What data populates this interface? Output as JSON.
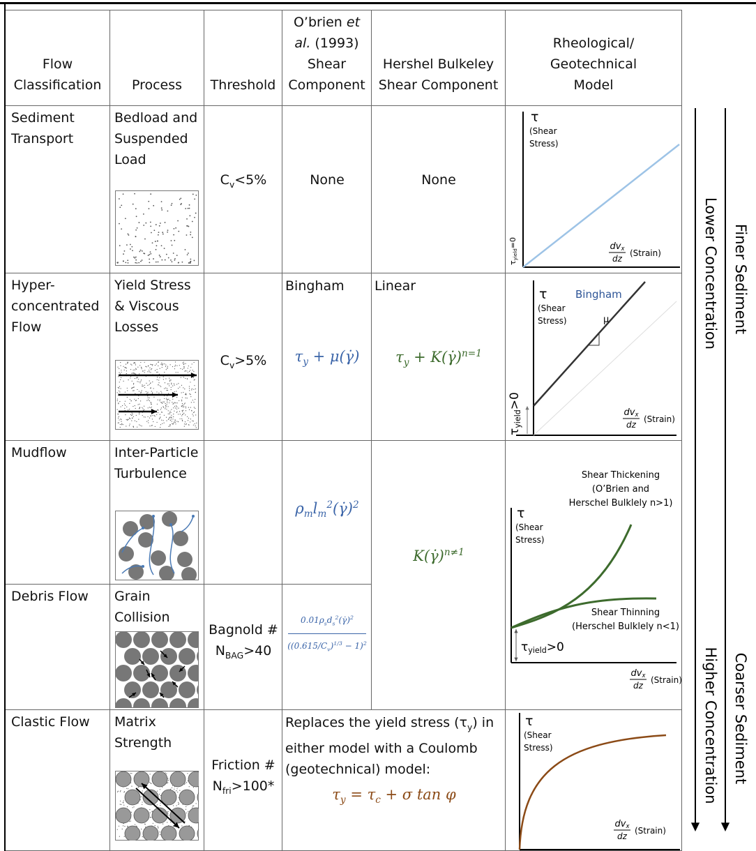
{
  "header": {
    "classification": "Flow Classification",
    "process": "Process",
    "threshold": "Threshold",
    "obrien": [
      {
        "t": "O’brien "
      },
      {
        "t": "et",
        "i": true
      },
      {
        "t": " "
      },
      {
        "t": "al.",
        "i": true
      },
      {
        "t": " (1993) Shear Component"
      }
    ],
    "hb": "Hershel Bulkeley Shear Component",
    "model": "Rheological/ Geotechnical Model"
  },
  "rows": [
    {
      "classification": "Sediment Transport",
      "process": "Bedload and Suspended Load",
      "threshold": [
        {
          "t": "C"
        },
        {
          "t": "v",
          "sub": true
        },
        {
          "t": "<5%"
        }
      ],
      "obrien": "None",
      "hb": "None"
    },
    {
      "classification": "Hyper-concentrated Flow",
      "process": "Yield Stress & Viscous Losses",
      "threshold": [
        {
          "t": "C"
        },
        {
          "t": "v",
          "sub": true
        },
        {
          "t": ">5%"
        }
      ],
      "obrien": {
        "label": "Bingham",
        "formula": [
          {
            "t": "τ"
          },
          {
            "t": "y",
            "sub": true
          },
          {
            "t": " + μ(γ̇)"
          }
        ]
      },
      "hb": {
        "label": "Linear",
        "formula": [
          {
            "t": "τ"
          },
          {
            "t": "y",
            "sub": true
          },
          {
            "t": " + K(γ̇)"
          },
          {
            "t": "n=1",
            "sup": true
          }
        ]
      }
    },
    {
      "classification": "Mudflow",
      "process": "Inter-Particle Turbulence",
      "obrien": {
        "formula": [
          {
            "t": "ρ"
          },
          {
            "t": "m",
            "sub": true
          },
          {
            "t": "l"
          },
          {
            "t": "m",
            "sub": true
          },
          {
            "t": "2",
            "sup": true
          },
          {
            "t": "(γ̇)"
          },
          {
            "t": "2",
            "sup": true
          }
        ]
      }
    },
    {
      "classification": "Debris Flow",
      "process": "Grain Collision",
      "threshold": {
        "label": "Bagnold #",
        "value": [
          {
            "t": "N"
          },
          {
            "t": "BAG",
            "sub": true
          },
          {
            "t": ">40"
          }
        ]
      },
      "obrien": {
        "numerator": [
          {
            "t": "0.01ρ"
          },
          {
            "t": "s",
            "sub": true
          },
          {
            "t": "d"
          },
          {
            "t": "s",
            "sub": true
          },
          {
            "t": "2",
            "sup": true
          },
          {
            "t": "(γ̇)"
          },
          {
            "t": "2",
            "sup": true
          }
        ],
        "denominator": [
          {
            "t": "((0.615/C"
          },
          {
            "t": "v",
            "sub": true
          },
          {
            "t": ")"
          },
          {
            "t": "1/3",
            "sup": true
          },
          {
            "t": " − 1)"
          },
          {
            "t": "2",
            "sup": true
          }
        ]
      }
    },
    {
      "classification": "Clastic Flow",
      "process": "Matrix Strength",
      "threshold": {
        "label": "Friction #",
        "value": [
          {
            "t": "N"
          },
          {
            "t": "fri",
            "sub": true
          },
          {
            "t": ">100*"
          }
        ]
      },
      "text": [
        {
          "t": "Replaces the yield stress (τ"
        },
        {
          "t": "y",
          "sub": true
        },
        {
          "t": ") in either model with a Coulomb (geotechnical) model:"
        }
      ],
      "formula": [
        {
          "t": "τ"
        },
        {
          "t": "y",
          "sub": true
        },
        {
          "t": " = τ"
        },
        {
          "t": "c",
          "sub": true
        },
        {
          "t": " + σ tan φ"
        }
      ]
    }
  ],
  "merged_hb": {
    "formula": [
      {
        "t": "K(γ̇)"
      },
      {
        "t": "n≠1",
        "sup": true
      }
    ]
  },
  "graphs": [
    {
      "tau": "τ",
      "axis_label": [
        "(Shear",
        "Stress)"
      ],
      "yield": [
        {
          "t": "τ"
        },
        {
          "t": "yield",
          "sub": true
        },
        {
          "t": "=0"
        }
      ],
      "strain": {
        "num": [
          {
            "t": "dv"
          },
          {
            "t": "x",
            "sub": true
          }
        ],
        "den": "dz",
        "label": "(Strain)"
      }
    },
    {
      "tau": "τ",
      "axis_label": [
        "(Shear",
        "Stress)"
      ],
      "curve": "Bingham",
      "slope": "μ",
      "yield": [
        {
          "t": "τ"
        },
        {
          "t": "yield",
          "sub": true
        },
        {
          "t": ">0"
        }
      ],
      "strain": {
        "num": [
          {
            "t": "dv"
          },
          {
            "t": "x",
            "sub": true
          }
        ],
        "den": "dz",
        "label": "(Strain)"
      }
    },
    {
      "tau": "τ",
      "axis_label": [
        "(Shear",
        "Stress)"
      ],
      "thickening": [
        "Shear Thickening",
        "(O’Brien and",
        "Herschel Bulklely n>1)"
      ],
      "thinning": [
        "Shear Thinning",
        "(Herschel Bulklely n<1)"
      ],
      "yield": [
        {
          "t": "τ"
        },
        {
          "t": "yield",
          "sub": true
        },
        {
          "t": ">0"
        }
      ],
      "strain": {
        "num": [
          {
            "t": "dv"
          },
          {
            "t": "x",
            "sub": true
          }
        ],
        "den": "dz",
        "label": "(Strain)"
      }
    },
    {
      "tau": "τ",
      "axis_label": [
        "(Shear",
        "Stress)"
      ],
      "strain": {
        "num": [
          {
            "t": "dv"
          },
          {
            "t": "x",
            "sub": true
          }
        ],
        "den": "dz",
        "label": "(Strain)"
      }
    }
  ],
  "side": {
    "lower": "Lower Concentration",
    "higher": "Higher Concentration",
    "finer": "Finer Sediment",
    "coarser": "Coarser Sediment"
  }
}
